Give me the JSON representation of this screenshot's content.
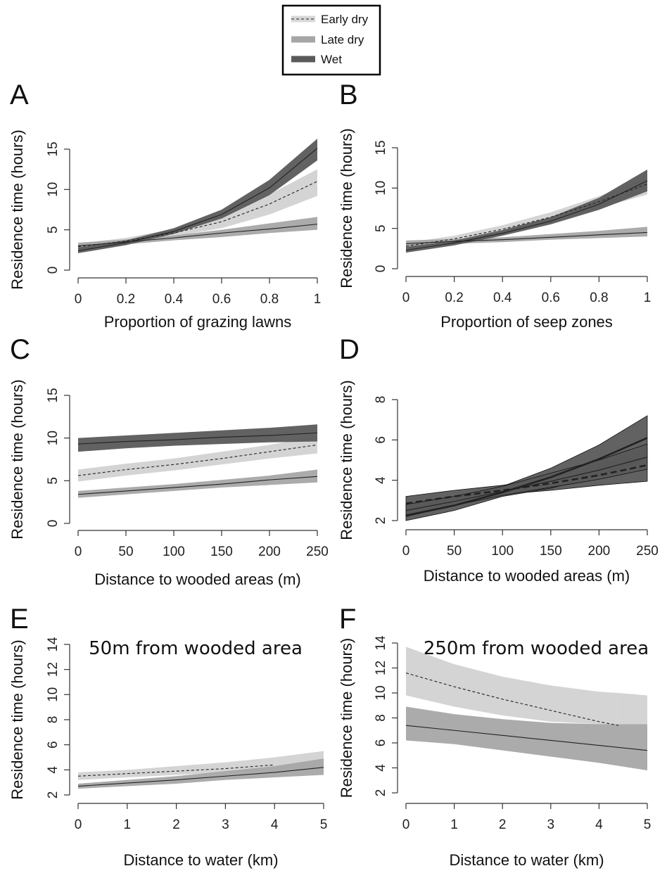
{
  "legend": {
    "entries": [
      {
        "label": "Early dry",
        "key": "early",
        "swatch": "dashed-line"
      },
      {
        "label": "Late dry",
        "key": "late",
        "swatch": "fill"
      },
      {
        "label": "Wet",
        "key": "wet",
        "swatch": "fill"
      }
    ]
  },
  "colors": {
    "early_band": "#d2d2d2",
    "late_band": "#a6a6a6",
    "wet_band": "#5a5a5a",
    "line": "#333333"
  },
  "chart_data": [
    {
      "type": "line",
      "panel": "A",
      "xlabel": "Proportion of grazing lawns",
      "ylabel": "Residence time (hours)",
      "xlim": [
        0,
        1
      ],
      "ylim": [
        0,
        15
      ],
      "xticks": [
        0,
        0.2,
        0.4,
        0.6,
        0.8,
        1
      ],
      "xtick_labels": [
        "0",
        "0.2",
        "0.4",
        "0.6",
        "0.8",
        "1"
      ],
      "yticks": [
        0,
        5,
        10,
        15
      ],
      "ytick_labels": [
        "0",
        "5",
        "10",
        "15"
      ],
      "annotation": "",
      "series": [
        {
          "name": "Early dry",
          "style": "dashed",
          "x": [
            0,
            0.2,
            0.4,
            0.6,
            0.8,
            1
          ],
          "y": [
            2.9,
            3.6,
            4.6,
            6.0,
            8.2,
            11.0
          ],
          "lower": [
            2.5,
            3.2,
            4.2,
            5.2,
            6.9,
            9.2
          ],
          "upper": [
            3.3,
            4.0,
            5.1,
            6.8,
            9.4,
            12.5
          ]
        },
        {
          "name": "Late dry",
          "style": "solid",
          "x": [
            0,
            0.2,
            0.4,
            0.6,
            0.8,
            1
          ],
          "y": [
            3.0,
            3.5,
            4.0,
            4.6,
            5.1,
            5.7
          ],
          "lower": [
            2.6,
            3.2,
            3.7,
            4.1,
            4.6,
            5.0
          ],
          "upper": [
            3.4,
            3.8,
            4.3,
            5.0,
            5.8,
            6.6
          ]
        },
        {
          "name": "Wet",
          "style": "solid",
          "x": [
            0,
            0.2,
            0.4,
            0.6,
            0.8,
            1
          ],
          "y": [
            2.4,
            3.4,
            4.8,
            6.9,
            10.2,
            15.1
          ],
          "lower": [
            2.1,
            3.1,
            4.5,
            6.4,
            9.3,
            13.6
          ],
          "upper": [
            2.8,
            3.7,
            5.2,
            7.5,
            11.2,
            16.3
          ]
        }
      ]
    },
    {
      "type": "line",
      "panel": "B",
      "xlabel": "Proportion of seep zones",
      "ylabel": "Residence time (hours)",
      "xlim": [
        0,
        1
      ],
      "ylim": [
        0,
        15
      ],
      "xticks": [
        0,
        0.2,
        0.4,
        0.6,
        0.8,
        1
      ],
      "xtick_labels": [
        "0",
        "0.2",
        "0.4",
        "0.6",
        "0.8",
        "1"
      ],
      "yticks": [
        0,
        5,
        10,
        15
      ],
      "ytick_labels": [
        "0",
        "5",
        "10",
        "15"
      ],
      "annotation": "",
      "series": [
        {
          "name": "Early dry",
          "style": "dashed",
          "x": [
            0,
            0.2,
            0.4,
            0.6,
            0.8,
            1
          ],
          "y": [
            2.8,
            3.7,
            4.9,
            6.4,
            8.3,
            10.5
          ],
          "lower": [
            2.4,
            3.3,
            4.5,
            5.8,
            7.5,
            9.2
          ],
          "upper": [
            3.2,
            4.1,
            5.4,
            7.0,
            9.0,
            11.3
          ]
        },
        {
          "name": "Late dry",
          "style": "solid",
          "x": [
            0,
            0.2,
            0.4,
            0.6,
            0.8,
            1
          ],
          "y": [
            3.1,
            3.4,
            3.6,
            3.9,
            4.2,
            4.5
          ],
          "lower": [
            2.7,
            3.1,
            3.3,
            3.6,
            3.8,
            4.0
          ],
          "upper": [
            3.5,
            3.7,
            3.9,
            4.3,
            4.7,
            5.2
          ]
        },
        {
          "name": "Wet",
          "style": "solid",
          "x": [
            0,
            0.2,
            0.4,
            0.6,
            0.8,
            1
          ],
          "y": [
            2.3,
            3.2,
            4.4,
            5.9,
            8.0,
            10.9
          ],
          "lower": [
            2.0,
            2.9,
            4.1,
            5.5,
            7.3,
            9.6
          ],
          "upper": [
            2.7,
            3.5,
            4.8,
            6.4,
            8.8,
            12.3
          ]
        }
      ]
    },
    {
      "type": "line",
      "panel": "C",
      "xlabel": "Distance to wooded areas (m)",
      "ylabel": "Residence time (hours)",
      "xlim": [
        0,
        250
      ],
      "ylim": [
        0,
        15
      ],
      "xticks": [
        0,
        50,
        100,
        150,
        200,
        250
      ],
      "xtick_labels": [
        "0",
        "50",
        "100",
        "150",
        "200",
        "250"
      ],
      "yticks": [
        0,
        5,
        10,
        15
      ],
      "ytick_labels": [
        "0",
        "5",
        "10",
        "15"
      ],
      "annotation": "",
      "series": [
        {
          "name": "Early dry",
          "style": "dashed",
          "x": [
            0,
            50,
            100,
            150,
            200,
            250
          ],
          "y": [
            5.6,
            6.3,
            6.9,
            7.6,
            8.4,
            9.2
          ],
          "lower": [
            4.9,
            5.6,
            6.2,
            6.9,
            7.6,
            8.2
          ],
          "upper": [
            6.3,
            7.0,
            7.6,
            8.4,
            9.2,
            10.2
          ]
        },
        {
          "name": "Late dry",
          "style": "solid",
          "x": [
            0,
            50,
            100,
            150,
            200,
            250
          ],
          "y": [
            3.4,
            3.8,
            4.2,
            4.6,
            5.1,
            5.5
          ],
          "lower": [
            3.0,
            3.4,
            3.8,
            4.2,
            4.5,
            4.8
          ],
          "upper": [
            3.8,
            4.2,
            4.6,
            5.1,
            5.6,
            6.3
          ]
        },
        {
          "name": "Wet",
          "style": "solid",
          "x": [
            0,
            50,
            100,
            150,
            200,
            250
          ],
          "y": [
            9.3,
            9.6,
            9.8,
            10.1,
            10.3,
            10.6
          ],
          "lower": [
            8.4,
            8.8,
            9.1,
            9.3,
            9.5,
            9.6
          ],
          "upper": [
            10.0,
            10.3,
            10.6,
            10.9,
            11.2,
            11.6
          ]
        }
      ]
    },
    {
      "type": "line",
      "panel": "D",
      "xlabel": "Distance to wooded areas (m)",
      "ylabel": "Residence time (hours)",
      "xlim": [
        0,
        250
      ],
      "ylim": [
        2,
        8
      ],
      "xticks": [
        0,
        50,
        100,
        150,
        200,
        250
      ],
      "xtick_labels": [
        "0",
        "50",
        "100",
        "150",
        "200",
        "250"
      ],
      "yticks": [
        2,
        4,
        6,
        8
      ],
      "ytick_labels": [
        "2",
        "4",
        "6",
        "8"
      ],
      "annotation": "",
      "series": [
        {
          "name": "",
          "style": "dashed-bold",
          "x": [
            0,
            50,
            100,
            150,
            200,
            250
          ],
          "y": [
            2.85,
            3.2,
            3.5,
            3.85,
            4.25,
            4.75
          ],
          "lower": [
            2.5,
            2.95,
            3.3,
            3.5,
            3.75,
            3.95
          ],
          "upper": [
            3.2,
            3.5,
            3.75,
            4.15,
            4.75,
            5.55
          ]
        },
        {
          "name": "",
          "style": "solid-bold",
          "x": [
            0,
            50,
            100,
            150,
            200,
            250
          ],
          "y": [
            2.25,
            2.75,
            3.4,
            4.15,
            5.05,
            6.1
          ],
          "lower": [
            2.0,
            2.5,
            3.2,
            3.6,
            4.25,
            5.1
          ],
          "upper": [
            2.55,
            3.05,
            3.7,
            4.6,
            5.75,
            7.2
          ]
        },
        {
          "name": "",
          "style": "solid-thin",
          "x": [
            0,
            50,
            100,
            150,
            200,
            250
          ],
          "y": [
            2.5,
            2.95,
            3.45,
            3.95,
            4.5,
            5.15
          ],
          "lower": [
            2.2,
            2.75,
            3.25,
            3.65,
            4.05,
            4.55
          ],
          "upper": [
            2.8,
            3.2,
            3.7,
            4.35,
            5.0,
            5.8
          ]
        }
      ]
    },
    {
      "type": "line",
      "panel": "E",
      "xlabel": "Distance to water (km)",
      "ylabel": "Residence time (hours)",
      "xlim": [
        0,
        5
      ],
      "ylim": [
        2,
        14
      ],
      "xticks": [
        0,
        1,
        2,
        3,
        4,
        5
      ],
      "xtick_labels": [
        "0",
        "1",
        "2",
        "3",
        "4",
        "5"
      ],
      "yticks": [
        2,
        4,
        6,
        8,
        10,
        12,
        14
      ],
      "ytick_labels": [
        "2",
        "4",
        "6",
        "8",
        "10",
        "12",
        "14"
      ],
      "annotation": "50m from wooded area",
      "series": [
        {
          "name": "Early dry",
          "style": "dashed",
          "x": [
            0,
            1,
            2,
            3,
            4
          ],
          "y": [
            3.5,
            3.7,
            3.9,
            4.1,
            4.4
          ],
          "lower": [
            3.2,
            3.4,
            3.6,
            3.8,
            3.9
          ],
          "upper": [
            3.8,
            4.0,
            4.3,
            4.6,
            5.0
          ]
        },
        {
          "name": "Early dry band",
          "style": "none",
          "x": [
            4,
            5
          ],
          "y": [
            4.4,
            4.6
          ],
          "lower": [
            3.9,
            4.1
          ],
          "upper": [
            5.0,
            5.5
          ]
        },
        {
          "name": "Late dry",
          "style": "solid",
          "x": [
            0,
            1,
            2,
            3,
            4,
            5
          ],
          "y": [
            2.7,
            2.95,
            3.2,
            3.5,
            3.8,
            4.2
          ],
          "lower": [
            2.5,
            2.7,
            2.9,
            3.2,
            3.4,
            3.6
          ],
          "upper": [
            2.9,
            3.2,
            3.5,
            3.9,
            4.3,
            4.9
          ]
        }
      ]
    },
    {
      "type": "line",
      "panel": "F",
      "xlabel": "Distance to water (km)",
      "ylabel": "Residence time (hours)",
      "xlim": [
        0,
        5
      ],
      "ylim": [
        2,
        14
      ],
      "xticks": [
        0,
        1,
        2,
        3,
        4,
        5
      ],
      "xtick_labels": [
        "0",
        "1",
        "2",
        "3",
        "4",
        "5"
      ],
      "yticks": [
        2,
        4,
        6,
        8,
        10,
        12,
        14
      ],
      "ytick_labels": [
        "2",
        "4",
        "6",
        "8",
        "10",
        "12",
        "14"
      ],
      "annotation": "250m from wooded area",
      "series": [
        {
          "name": "Early dry",
          "style": "dashed",
          "x": [
            0,
            1,
            2,
            3,
            4,
            4.4
          ],
          "y": [
            11.6,
            10.5,
            9.5,
            8.6,
            7.7,
            7.4
          ],
          "lower": [
            9.8,
            8.9,
            8.2,
            7.7,
            7.5,
            7.5
          ],
          "upper": [
            13.7,
            12.3,
            11.3,
            10.6,
            10.1,
            10.0
          ]
        },
        {
          "name": "Early dry band",
          "style": "none",
          "x": [
            4.4,
            5
          ],
          "y": [
            7.4,
            7.2
          ],
          "lower": [
            7.5,
            7.5
          ],
          "upper": [
            10.0,
            9.8
          ]
        },
        {
          "name": "Late dry",
          "style": "solid",
          "x": [
            0,
            1,
            2,
            3,
            4,
            5
          ],
          "y": [
            7.4,
            7.0,
            6.6,
            6.2,
            5.8,
            5.4
          ],
          "lower": [
            6.2,
            5.9,
            5.4,
            4.9,
            4.4,
            3.8
          ],
          "upper": [
            8.9,
            8.3,
            7.9,
            7.6,
            7.5,
            7.5
          ]
        }
      ]
    }
  ]
}
